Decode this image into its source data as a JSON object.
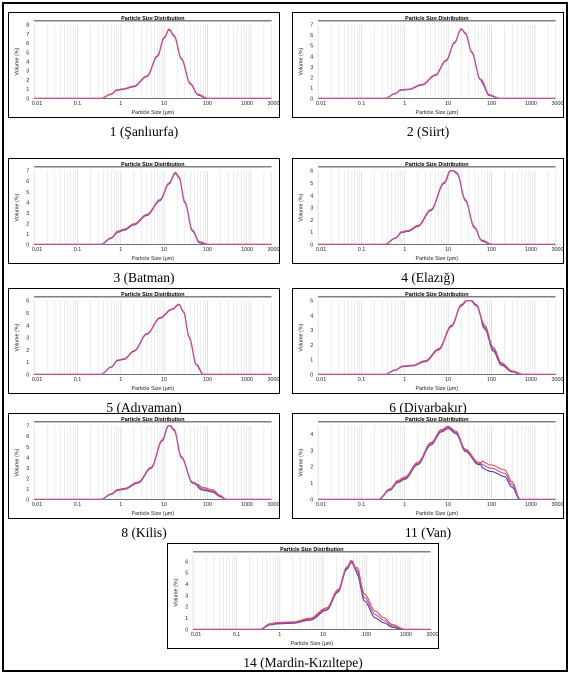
{
  "figure": {
    "chart_title": "Particle Size Distribution",
    "x_axis_label": "Particle Size (µm)",
    "y_axis_label": "Volume (%)",
    "x_tick_labels": [
      "0.01",
      "0.1",
      "1",
      "10",
      "100",
      "1000",
      "3000"
    ],
    "series_colors": [
      "#4a3fa6",
      "#d9534f",
      "#c24fa0"
    ],
    "grid_color": "#d4d4d4"
  },
  "chart_data": [
    {
      "type": "line",
      "caption": "1 (Şanlıurfa)",
      "title": "Particle Size Distribution",
      "xlabel": "Particle Size (µm)",
      "ylabel": "Volume (%)",
      "x_scale": "log",
      "xlim": [
        0.01,
        3000
      ],
      "ylim": [
        0,
        8
      ],
      "yticks": [
        0,
        1,
        2,
        3,
        4,
        5,
        6,
        7,
        8
      ],
      "points": [
        [
          0.01,
          0
        ],
        [
          0.35,
          0
        ],
        [
          0.6,
          0.45
        ],
        [
          0.8,
          0.9
        ],
        [
          1.1,
          1.0
        ],
        [
          2,
          1.3
        ],
        [
          4,
          2.4
        ],
        [
          7,
          4.6
        ],
        [
          10,
          6.6
        ],
        [
          13,
          7.5
        ],
        [
          17,
          6.8
        ],
        [
          25,
          4.3
        ],
        [
          40,
          1.6
        ],
        [
          60,
          0.4
        ],
        [
          100,
          0
        ],
        [
          3000,
          0
        ]
      ],
      "variation": 0.12
    },
    {
      "type": "line",
      "caption": "2 (Siirt)",
      "title": "Particle Size Distribution",
      "xlabel": "Particle Size (µm)",
      "ylabel": "Volume (%)",
      "x_scale": "log",
      "xlim": [
        0.01,
        3000
      ],
      "ylim": [
        0,
        7
      ],
      "yticks": [
        0,
        1,
        2,
        3,
        4,
        5,
        6,
        7
      ],
      "points": [
        [
          0.01,
          0
        ],
        [
          0.35,
          0
        ],
        [
          0.6,
          0.45
        ],
        [
          0.8,
          0.8
        ],
        [
          1.2,
          0.85
        ],
        [
          2.5,
          1.3
        ],
        [
          5,
          2.2
        ],
        [
          9,
          3.6
        ],
        [
          14,
          5.3
        ],
        [
          20,
          6.6
        ],
        [
          25,
          6.2
        ],
        [
          35,
          4.4
        ],
        [
          55,
          1.8
        ],
        [
          90,
          0.3
        ],
        [
          150,
          0
        ],
        [
          3000,
          0
        ]
      ],
      "variation": 0.1
    },
    {
      "type": "line",
      "caption": "3 (Batman)",
      "title": "Particle Size Distribution",
      "xlabel": "Particle Size (µm)",
      "ylabel": "Volume (%)",
      "x_scale": "log",
      "xlim": [
        0.01,
        3000
      ],
      "ylim": [
        0,
        7
      ],
      "yticks": [
        0,
        1,
        2,
        3,
        4,
        5,
        6,
        7
      ],
      "points": [
        [
          0.01,
          0
        ],
        [
          0.35,
          0
        ],
        [
          0.6,
          0.6
        ],
        [
          0.85,
          1.2
        ],
        [
          1.2,
          1.4
        ],
        [
          2,
          1.9
        ],
        [
          4,
          2.8
        ],
        [
          8,
          4.2
        ],
        [
          13,
          5.8
        ],
        [
          18,
          6.8
        ],
        [
          22,
          6.4
        ],
        [
          30,
          4.0
        ],
        [
          45,
          1.3
        ],
        [
          65,
          0.2
        ],
        [
          100,
          0
        ],
        [
          3000,
          0
        ]
      ],
      "variation": 0.15
    },
    {
      "type": "line",
      "caption": "4 (Elazığ)",
      "title": "Particle Size Distribution",
      "xlabel": "Particle Size (µm)",
      "ylabel": "Volume (%)",
      "x_scale": "log",
      "xlim": [
        0.01,
        3000
      ],
      "ylim": [
        0,
        6
      ],
      "yticks": [
        0,
        1,
        2,
        3,
        4,
        5,
        6
      ],
      "points": [
        [
          0.01,
          0
        ],
        [
          0.35,
          0
        ],
        [
          0.6,
          0.5
        ],
        [
          0.85,
          1.0
        ],
        [
          1.2,
          1.1
        ],
        [
          2,
          1.5
        ],
        [
          4,
          2.8
        ],
        [
          8,
          5.0
        ],
        [
          12,
          6.2
        ],
        [
          16,
          5.8
        ],
        [
          25,
          3.6
        ],
        [
          40,
          1.4
        ],
        [
          60,
          0.3
        ],
        [
          100,
          0
        ],
        [
          3000,
          0
        ]
      ],
      "variation": 0.12
    },
    {
      "type": "line",
      "caption": "5 (Adıyaman)",
      "title": "Particle Size Distribution",
      "xlabel": "Particle Size (µm)",
      "ylabel": "Volume (%)",
      "x_scale": "log",
      "xlim": [
        0.01,
        3000
      ],
      "ylim": [
        0,
        6
      ],
      "yticks": [
        0,
        1,
        2,
        3,
        4,
        5,
        6
      ],
      "points": [
        [
          0.01,
          0
        ],
        [
          0.35,
          0
        ],
        [
          0.6,
          0.6
        ],
        [
          0.85,
          1.15
        ],
        [
          1.2,
          1.25
        ],
        [
          2,
          1.9
        ],
        [
          4,
          3.3
        ],
        [
          8,
          4.6
        ],
        [
          15,
          5.3
        ],
        [
          22,
          5.7
        ],
        [
          28,
          5.1
        ],
        [
          38,
          3.0
        ],
        [
          55,
          0.8
        ],
        [
          80,
          0
        ],
        [
          3000,
          0
        ]
      ],
      "variation": 0.08
    },
    {
      "type": "line",
      "caption": "6 (Diyarbakır)",
      "title": "Particle Size Distribution",
      "xlabel": "Particle Size (µm)",
      "ylabel": "Volume (%)",
      "x_scale": "log",
      "xlim": [
        0.01,
        3000
      ],
      "ylim": [
        0,
        5
      ],
      "yticks": [
        0,
        1,
        2,
        3,
        4,
        5
      ],
      "points": [
        [
          0.01,
          0
        ],
        [
          0.35,
          0
        ],
        [
          0.6,
          0.3
        ],
        [
          0.9,
          0.55
        ],
        [
          1.5,
          0.6
        ],
        [
          3,
          0.9
        ],
        [
          6,
          1.7
        ],
        [
          12,
          3.3
        ],
        [
          20,
          4.7
        ],
        [
          30,
          5.2
        ],
        [
          45,
          4.7
        ],
        [
          70,
          3.2
        ],
        [
          110,
          1.7
        ],
        [
          170,
          0.7
        ],
        [
          300,
          0.2
        ],
        [
          500,
          0
        ],
        [
          3000,
          0
        ]
      ],
      "variation": 0.12
    },
    {
      "type": "line",
      "caption": "8 (Kilis)",
      "title": "Particle Size Distribution",
      "xlabel": "Particle Size (µm)",
      "ylabel": "Volume (%)",
      "x_scale": "log",
      "xlim": [
        0.01,
        3000
      ],
      "ylim": [
        0,
        7
      ],
      "yticks": [
        0,
        1,
        2,
        3,
        4,
        5,
        6,
        7
      ],
      "points": [
        [
          0.01,
          0
        ],
        [
          0.35,
          0
        ],
        [
          0.6,
          0.5
        ],
        [
          0.85,
          0.9
        ],
        [
          1.2,
          1.0
        ],
        [
          2.5,
          1.6
        ],
        [
          5,
          3.0
        ],
        [
          9,
          5.6
        ],
        [
          13,
          7.2
        ],
        [
          17,
          6.6
        ],
        [
          25,
          4.0
        ],
        [
          45,
          1.6
        ],
        [
          80,
          1.0
        ],
        [
          130,
          0.8
        ],
        [
          200,
          0.3
        ],
        [
          260,
          0
        ],
        [
          3000,
          0
        ]
      ],
      "variation": 0.15
    },
    {
      "type": "line",
      "caption": "11 (Van)",
      "title": "Particle Size Distribution",
      "xlabel": "Particle Size (µm)",
      "ylabel": "Volume (%)",
      "x_scale": "log",
      "xlim": [
        0.01,
        3000
      ],
      "ylim": [
        0,
        4.5
      ],
      "yticks": [
        0,
        1,
        2,
        3,
        4
      ],
      "points": [
        [
          0.01,
          0
        ],
        [
          0.25,
          0
        ],
        [
          0.45,
          0.6
        ],
        [
          0.7,
          1.1
        ],
        [
          1,
          1.3
        ],
        [
          2,
          2.2
        ],
        [
          4,
          3.4
        ],
        [
          7,
          4.2
        ],
        [
          10,
          4.4
        ],
        [
          15,
          4.1
        ],
        [
          25,
          3.0
        ],
        [
          50,
          2.2
        ],
        [
          100,
          1.9
        ],
        [
          200,
          1.6
        ],
        [
          300,
          0.9
        ],
        [
          450,
          0
        ],
        [
          3000,
          0
        ]
      ],
      "variation": 0.2
    },
    {
      "type": "line",
      "caption": "14 (Mardin-Kızıltepe)",
      "title": "Particle Size Distribution",
      "xlabel": "Particle Size (µm)",
      "ylabel": "Volume (%)",
      "x_scale": "log",
      "xlim": [
        0.01,
        3000
      ],
      "ylim": [
        0,
        6.5
      ],
      "yticks": [
        0,
        1,
        2,
        3,
        4,
        5,
        6
      ],
      "points": [
        [
          0.01,
          0
        ],
        [
          0.35,
          0
        ],
        [
          0.6,
          0.45
        ],
        [
          0.9,
          0.55
        ],
        [
          2,
          0.6
        ],
        [
          5,
          0.9
        ],
        [
          12,
          1.8
        ],
        [
          22,
          3.4
        ],
        [
          35,
          5.4
        ],
        [
          45,
          6.0
        ],
        [
          60,
          5.2
        ],
        [
          90,
          2.8
        ],
        [
          160,
          1.3
        ],
        [
          250,
          0.8
        ],
        [
          400,
          0.3
        ],
        [
          700,
          0
        ],
        [
          3000,
          0
        ]
      ],
      "variation": 0.3
    }
  ]
}
